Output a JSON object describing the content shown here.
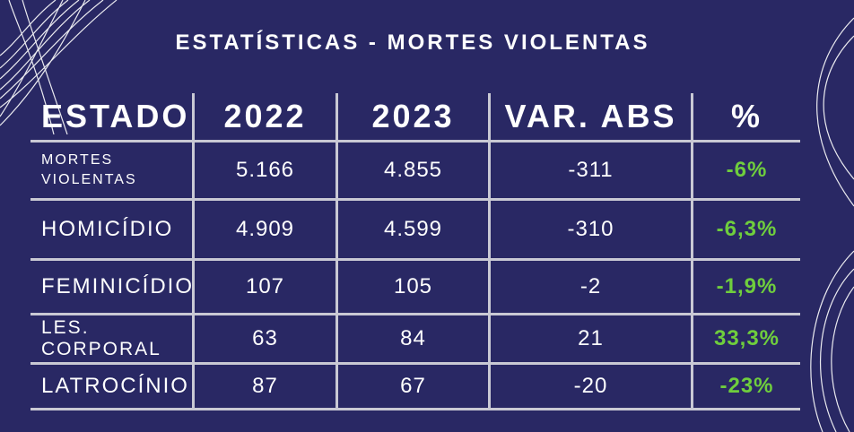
{
  "title": "ESTATÍSTICAS - MORTES VIOLENTAS",
  "colors": {
    "background": "#292864",
    "text": "#ffffff",
    "positive_pct": "#6fce3d",
    "grid": "#c9c9d4"
  },
  "table": {
    "headers": [
      "ESTADO",
      "2022",
      "2023",
      "VAR. ABS",
      "%"
    ],
    "rows": [
      {
        "label": "MORTES VIOLENTAS",
        "v2022": "5.166",
        "v2023": "4.855",
        "var": "-311",
        "pct": "-6%"
      },
      {
        "label": "HOMICÍDIO",
        "v2022": "4.909",
        "v2023": "4.599",
        "var": "-310",
        "pct": "-6,3%"
      },
      {
        "label": "FEMINICÍDIO",
        "v2022": "107",
        "v2023": "105",
        "var": "-2",
        "pct": "-1,9%"
      },
      {
        "label": "LES. CORPORAL",
        "v2022": "63",
        "v2023": "84",
        "var": "21",
        "pct": "33,3%"
      },
      {
        "label": "LATROCÍNIO",
        "v2022": "87",
        "v2023": "67",
        "var": "-20",
        "pct": "-23%"
      }
    ]
  }
}
